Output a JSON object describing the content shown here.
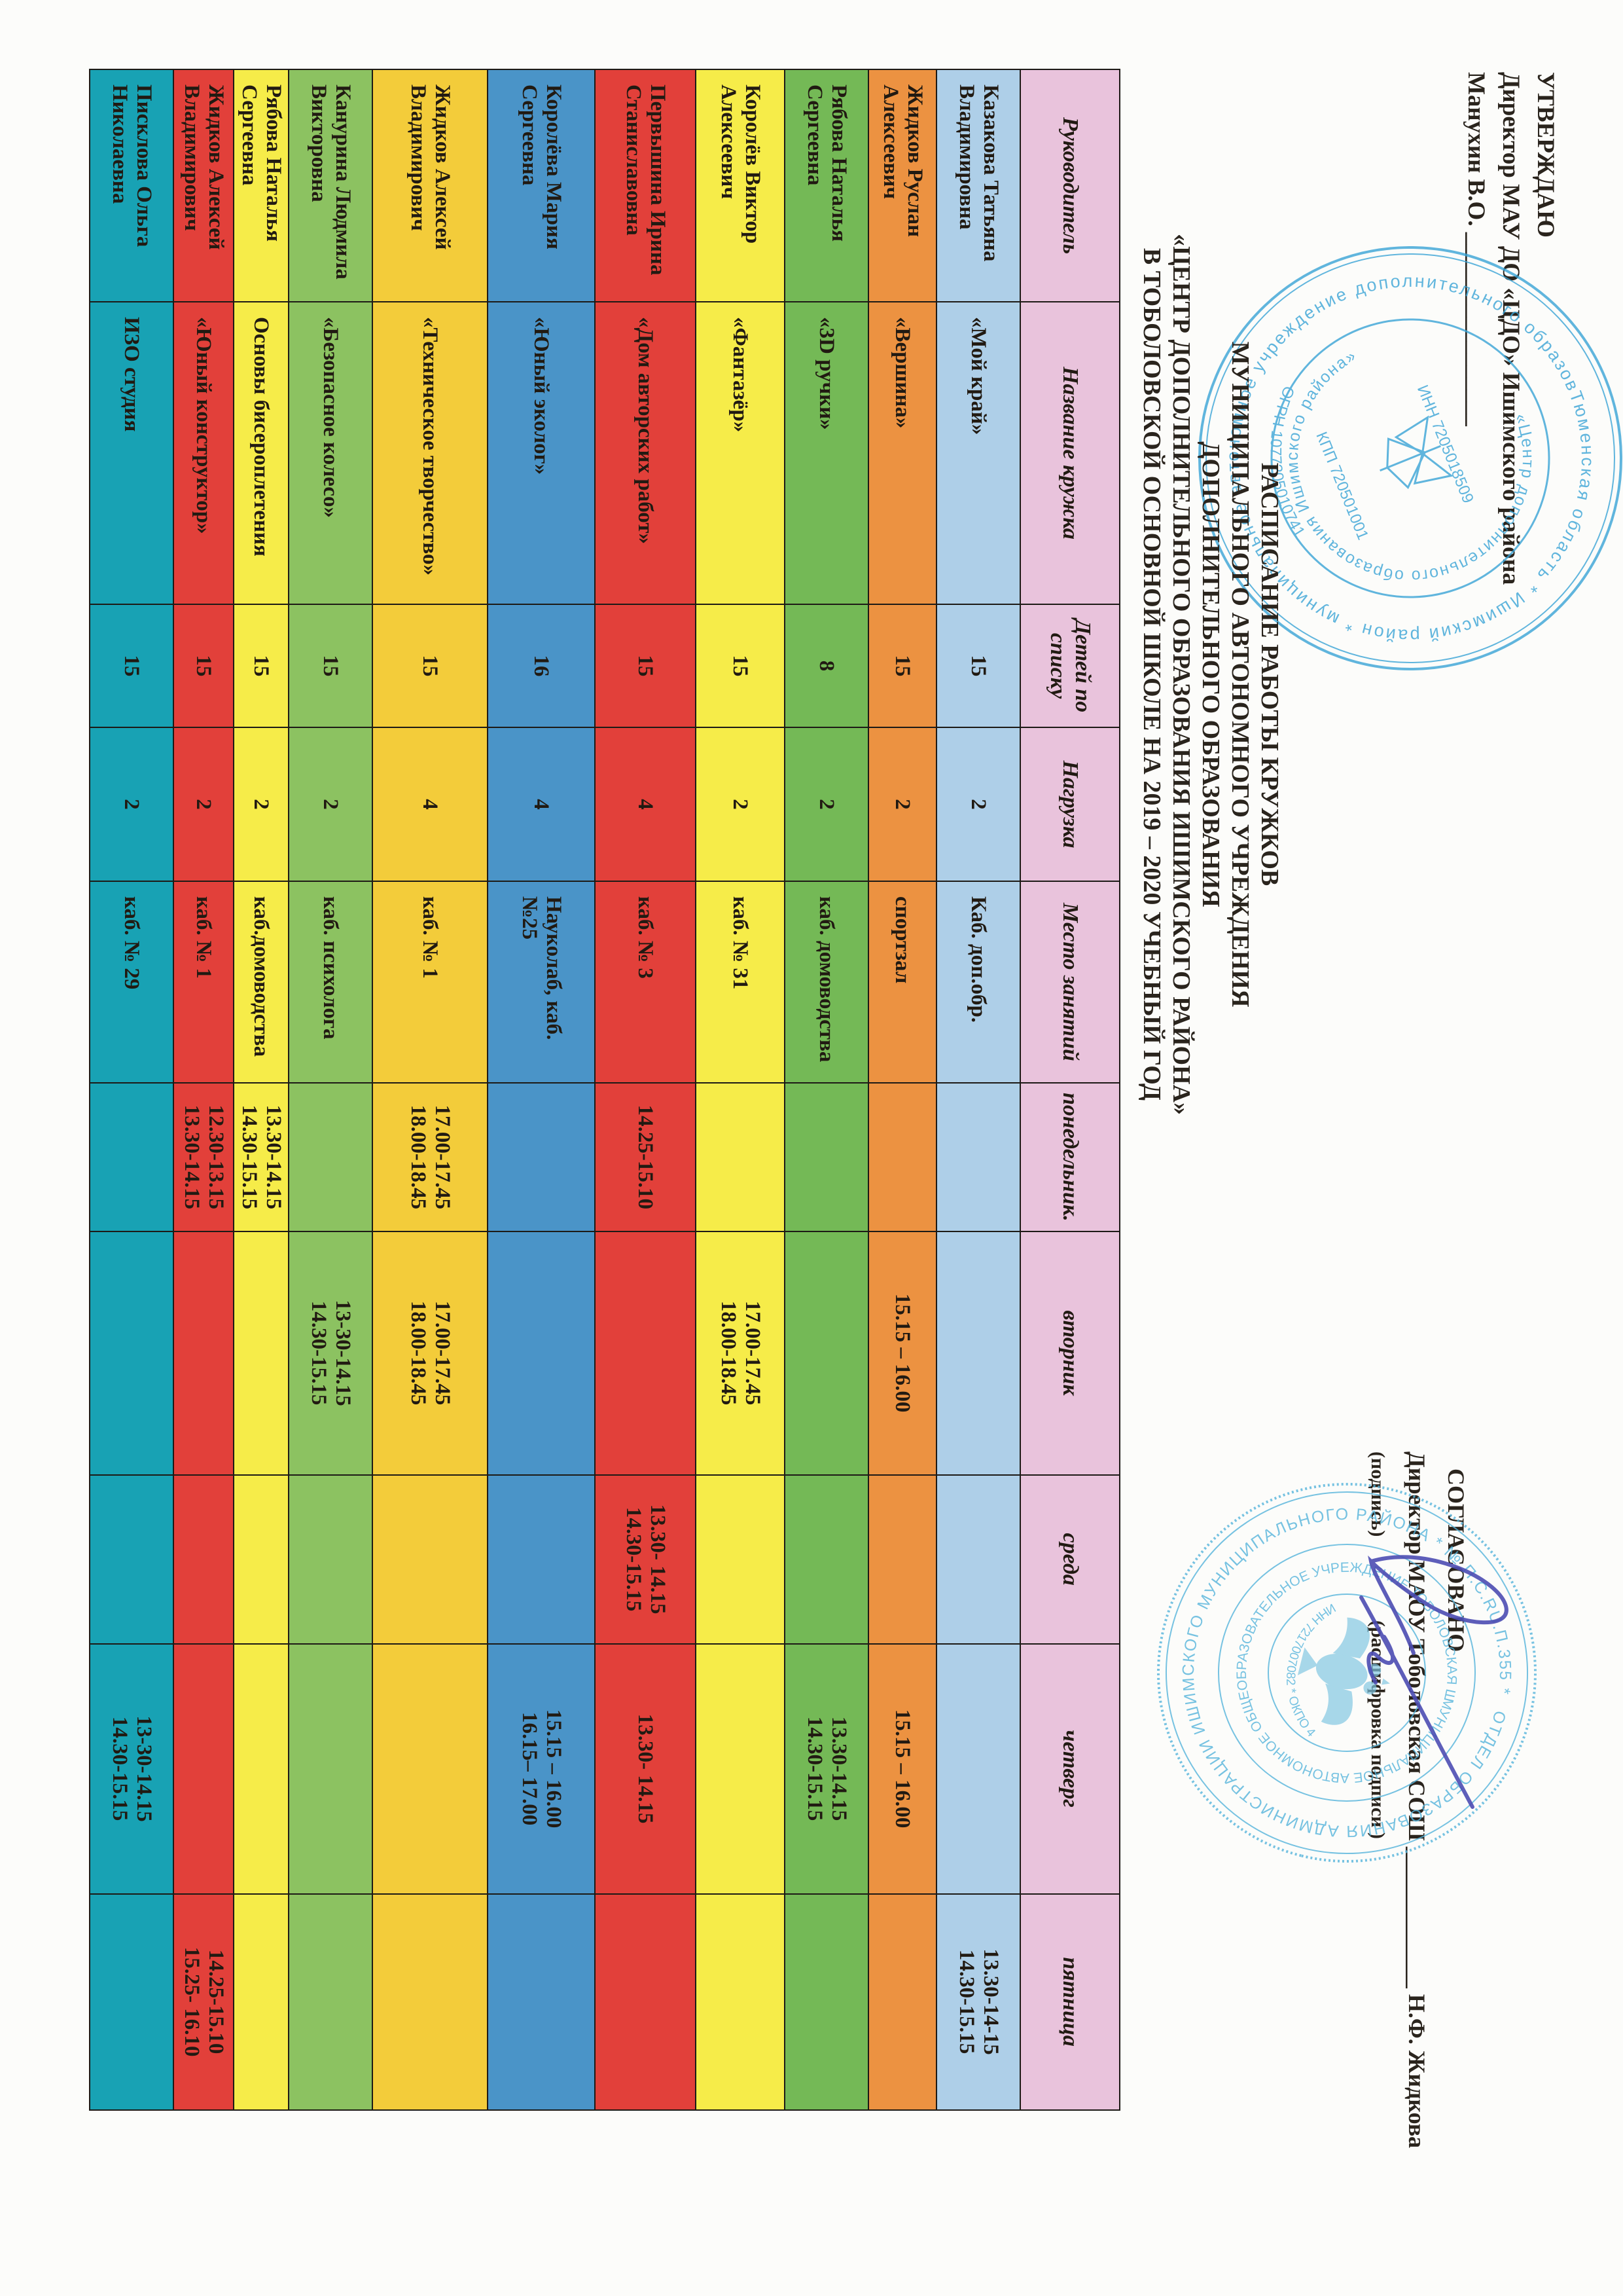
{
  "approve_block": {
    "line1": "УТВЕРЖДАЮ",
    "line2": "Директор МАУ ДО «ЦДО» Ишимского района",
    "line3": "Манухин В.О. ________________"
  },
  "title_block": {
    "lines": [
      "РАСПИСАНИЕ РАБОТЫ КРУЖКОВ",
      "МУНИЦИПАЛЬНОГО АВТОНОМНОГО УЧРЕЖДЕНИЯ",
      "ДОПОЛНИТЕЛЬНОГО ОБРАЗОВАНИЯ",
      "«ЦЕНТР ДОПОЛНИТЕЛЬНОГО ОБРАЗОВАНИЯ ИШИМСКОГО РАЙОНА»",
      "В ТОБОЛОВСКОЙ ОСНОВНОЙ ШКОЛЕ НА  2019 – 2020 УЧЕБНЫЙ ГОД"
    ]
  },
  "agree_block": {
    "line1": "СОГЛАСОВАНО",
    "line2": "Директор МАОУ Тоболовская СОШ ____________ Н.Ф. Жидкова",
    "caption_sign": "(подпись)",
    "caption_decode": "(расшифровка подписи )"
  },
  "stamps": {
    "cdo_stamp": {
      "outer_text": "Тюменская область * Ишимский район * муниципальное автономное учреждение дополнительного образования *",
      "inner_text": "«Центр дополнительного образования Ишимского района»",
      "center_line1": "ИНН 7205018509",
      "center_line2": "КПП 720501001",
      "bottom_text": "ОГРН 1077205010741",
      "color": "#3aa4d6"
    },
    "school_stamp": {
      "outer_text": "ОТДЕЛ ОБРАЗОВАНИЯ АДМИНИСТРАЦИИ ИШИМСКОГО МУНИЦИПАЛЬНОГО РАЙОНА * № П.С.RU.П.355 *",
      "inner_text": "МУНИЦИПАЛЬНОЕ АВТОНОМНОЕ ОБЩЕОБРАЗОВАТЕЛЬНОЕ УЧРЕЖДЕНИЕ ТОБОЛОВСКАЯ ШКОЛА (МАОУ ТОБОЛОВСКАЯ СОШ)",
      "center_text": "ИНН 7217007082 * ОКПО 40784891",
      "color": "#55b4dc"
    }
  },
  "table": {
    "columns": [
      {
        "key": "name",
        "label": "Руководитель"
      },
      {
        "key": "club",
        "label": "Название кружка"
      },
      {
        "key": "count",
        "label": "Детей по списку"
      },
      {
        "key": "load",
        "label": "Нагрузка"
      },
      {
        "key": "place",
        "label": "Место занятий"
      },
      {
        "key": "mon",
        "label": "понедельник."
      },
      {
        "key": "tue",
        "label": "вторник"
      },
      {
        "key": "wed",
        "label": "среда"
      },
      {
        "key": "thu",
        "label": "четверг"
      },
      {
        "key": "fri",
        "label": "пятница"
      }
    ],
    "header_color": "#e9c3dc",
    "rows": [
      {
        "color": "#aecfe8",
        "name": "Казакова Татьяна Владимировна",
        "club": "«Мой край»",
        "count": "15",
        "load": "2",
        "place": "Каб. доп.обр.",
        "mon": [],
        "tue": [],
        "wed": [],
        "thu": [],
        "fri": [
          "13.30-14-15",
          "14.30-15.15"
        ]
      },
      {
        "color": "#ec9241",
        "name": "Жидков Руслан Алексеевич",
        "club": "«Вершина»",
        "count": "15",
        "load": "2",
        "place": "спортзал",
        "mon": [],
        "tue": [
          "15.15 – 16.00"
        ],
        "wed": [],
        "thu": [
          "15.15 – 16.00"
        ],
        "fri": []
      },
      {
        "color": "#74b956",
        "name": "Рябова Наталья Сергеевна",
        "club": "«3D ручки»",
        "count": "8",
        "load": "2",
        "place": "каб. домоводства",
        "mon": [],
        "tue": [],
        "wed": [],
        "thu": [
          "13.30-14.15",
          "14.30-15.15"
        ],
        "fri": []
      },
      {
        "color": "#f6ec49",
        "name": "Королёв Виктор Алексеевич",
        "club": "«Фантазёр»",
        "count": "15",
        "load": "2",
        "place": "каб. № 31",
        "mon": [],
        "tue": [
          "17.00-17.45",
          "18.00-18.45"
        ],
        "wed": [],
        "thu": [],
        "fri": []
      },
      {
        "color": "#e2403a",
        "name": "Первышина Ирина Станиславовна",
        "club": "«Дом авторских работ»",
        "count": "15",
        "load": "4",
        "place": "каб. № 3",
        "mon": [
          "14.25-15.10"
        ],
        "tue": [],
        "wed": [
          "13.30- 14.15",
          "14.30-15.15"
        ],
        "thu": [
          "13.30- 14.15"
        ],
        "fri": []
      },
      {
        "color": "#4a94c8",
        "name": "Королёва Мария Сергеевна",
        "club": "«Юный эколог»",
        "count": "16",
        "load": "4",
        "place": "Науколаб, каб. №25",
        "mon": [],
        "tue": [],
        "wed": [],
        "thu": [
          "15.15 – 16.00",
          "16.15– 17.00"
        ],
        "fri": []
      },
      {
        "color": "#f3cc3a",
        "name": "Жидков Алексей Владимирович",
        "club": "«Техническое творчество»",
        "count": "15",
        "load": "4",
        "place": "каб. № 1",
        "mon": [
          "17.00-17.45",
          "18.00-18.45"
        ],
        "tue": [
          "17.00-17.45",
          "18.00-18.45"
        ],
        "wed": [],
        "thu": [],
        "fri": []
      },
      {
        "color": "#8cc261",
        "name": "Канурина Людмила Викторовна",
        "club": "«Безопасное колесо»",
        "count": "15",
        "load": "2",
        "place": "каб. психолога",
        "mon": [],
        "tue": [
          "13-30-14.15",
          "14.30-15.15"
        ],
        "wed": [],
        "thu": [],
        "fri": []
      },
      {
        "color": "#f6ec49",
        "name": "Рябова Наталья Сергеевна",
        "club": "Основы бисероплетения",
        "count": "15",
        "load": "2",
        "place": "каб.домоводства",
        "mon": [
          "13.30-14.15",
          "14.30-15.15"
        ],
        "tue": [],
        "wed": [],
        "thu": [],
        "fri": []
      },
      {
        "color": "#e2403a",
        "name": "Жидков Алексей Владимирович",
        "club": "«Юный конструктор»",
        "count": "15",
        "load": "2",
        "place": "каб. № 1",
        "mon": [
          "12.30-13.15",
          "13.30-14.15"
        ],
        "tue": [],
        "wed": [],
        "thu": [],
        "fri": [
          "14.25-15.10",
          "15.25- 16.10"
        ]
      },
      {
        "color": "#18a2b4",
        "name": "Писклова Ольга Николаевна",
        "club": "ИЗО студия",
        "count": "15",
        "load": "2",
        "place": "каб. № 29",
        "mon": [],
        "tue": [],
        "wed": [],
        "thu": [
          "13-30-14.15",
          "14.30-15.15"
        ],
        "fri": []
      }
    ]
  }
}
